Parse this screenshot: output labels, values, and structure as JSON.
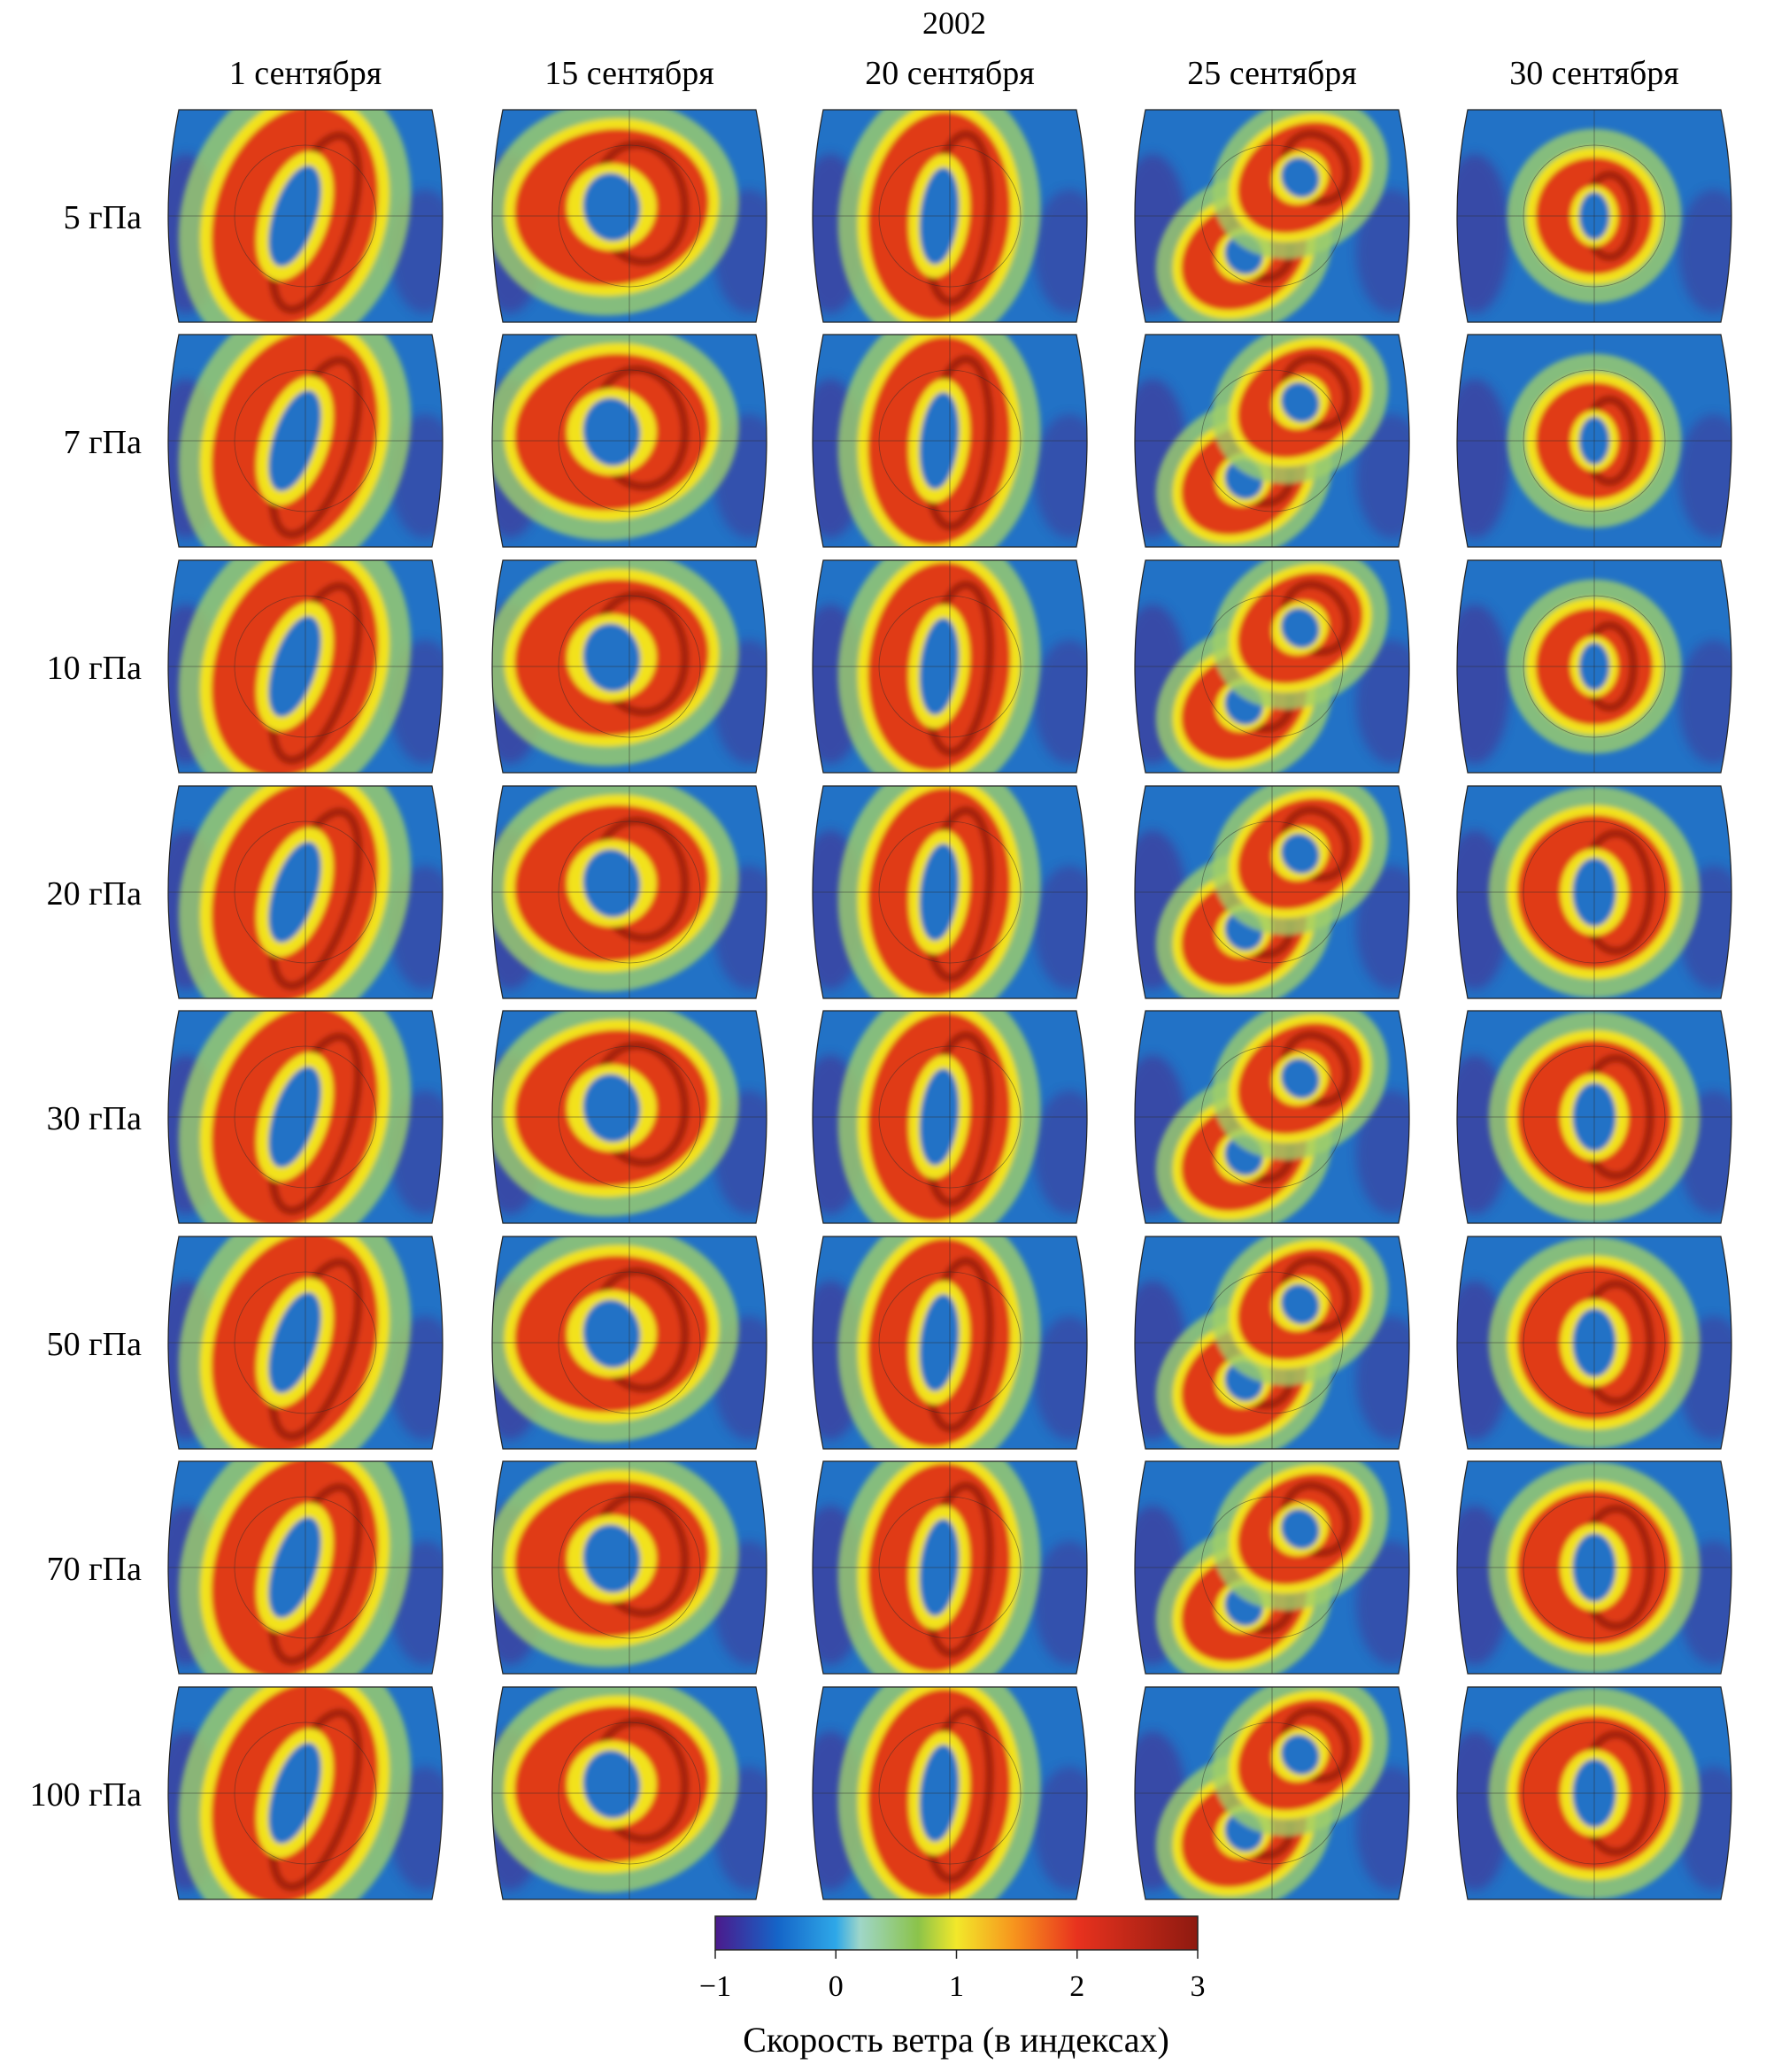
{
  "figure": {
    "year": "2002",
    "dates": [
      "1 сентября",
      "15 сентября",
      "20 сентября",
      "25 сентября",
      "30 сентября"
    ],
    "levels": [
      "5 гПа",
      "7 гПа",
      "10 гПа",
      "20 гПа",
      "30 гПа",
      "50 гПа",
      "70 гПа",
      "100 гПа"
    ],
    "colorbar": {
      "ticks": [
        "−1",
        "0",
        "1",
        "2",
        "3"
      ],
      "label": "Скорость ветра (в индексах)",
      "colors": [
        "#4b1a8c",
        "#1565c8",
        "#2ea8e8",
        "#9fd6c8",
        "#8bc34a",
        "#f2e82a",
        "#f7941d",
        "#e8321e",
        "#8e1a10"
      ]
    },
    "field_colors": {
      "background": "#2272c6",
      "midlatitude": "#9fd06a",
      "jet_edge": "#f2e21e",
      "jet_core": "#e03a12",
      "jet_max": "#8b1a0e",
      "low": "#4a2a8e"
    }
  }
}
